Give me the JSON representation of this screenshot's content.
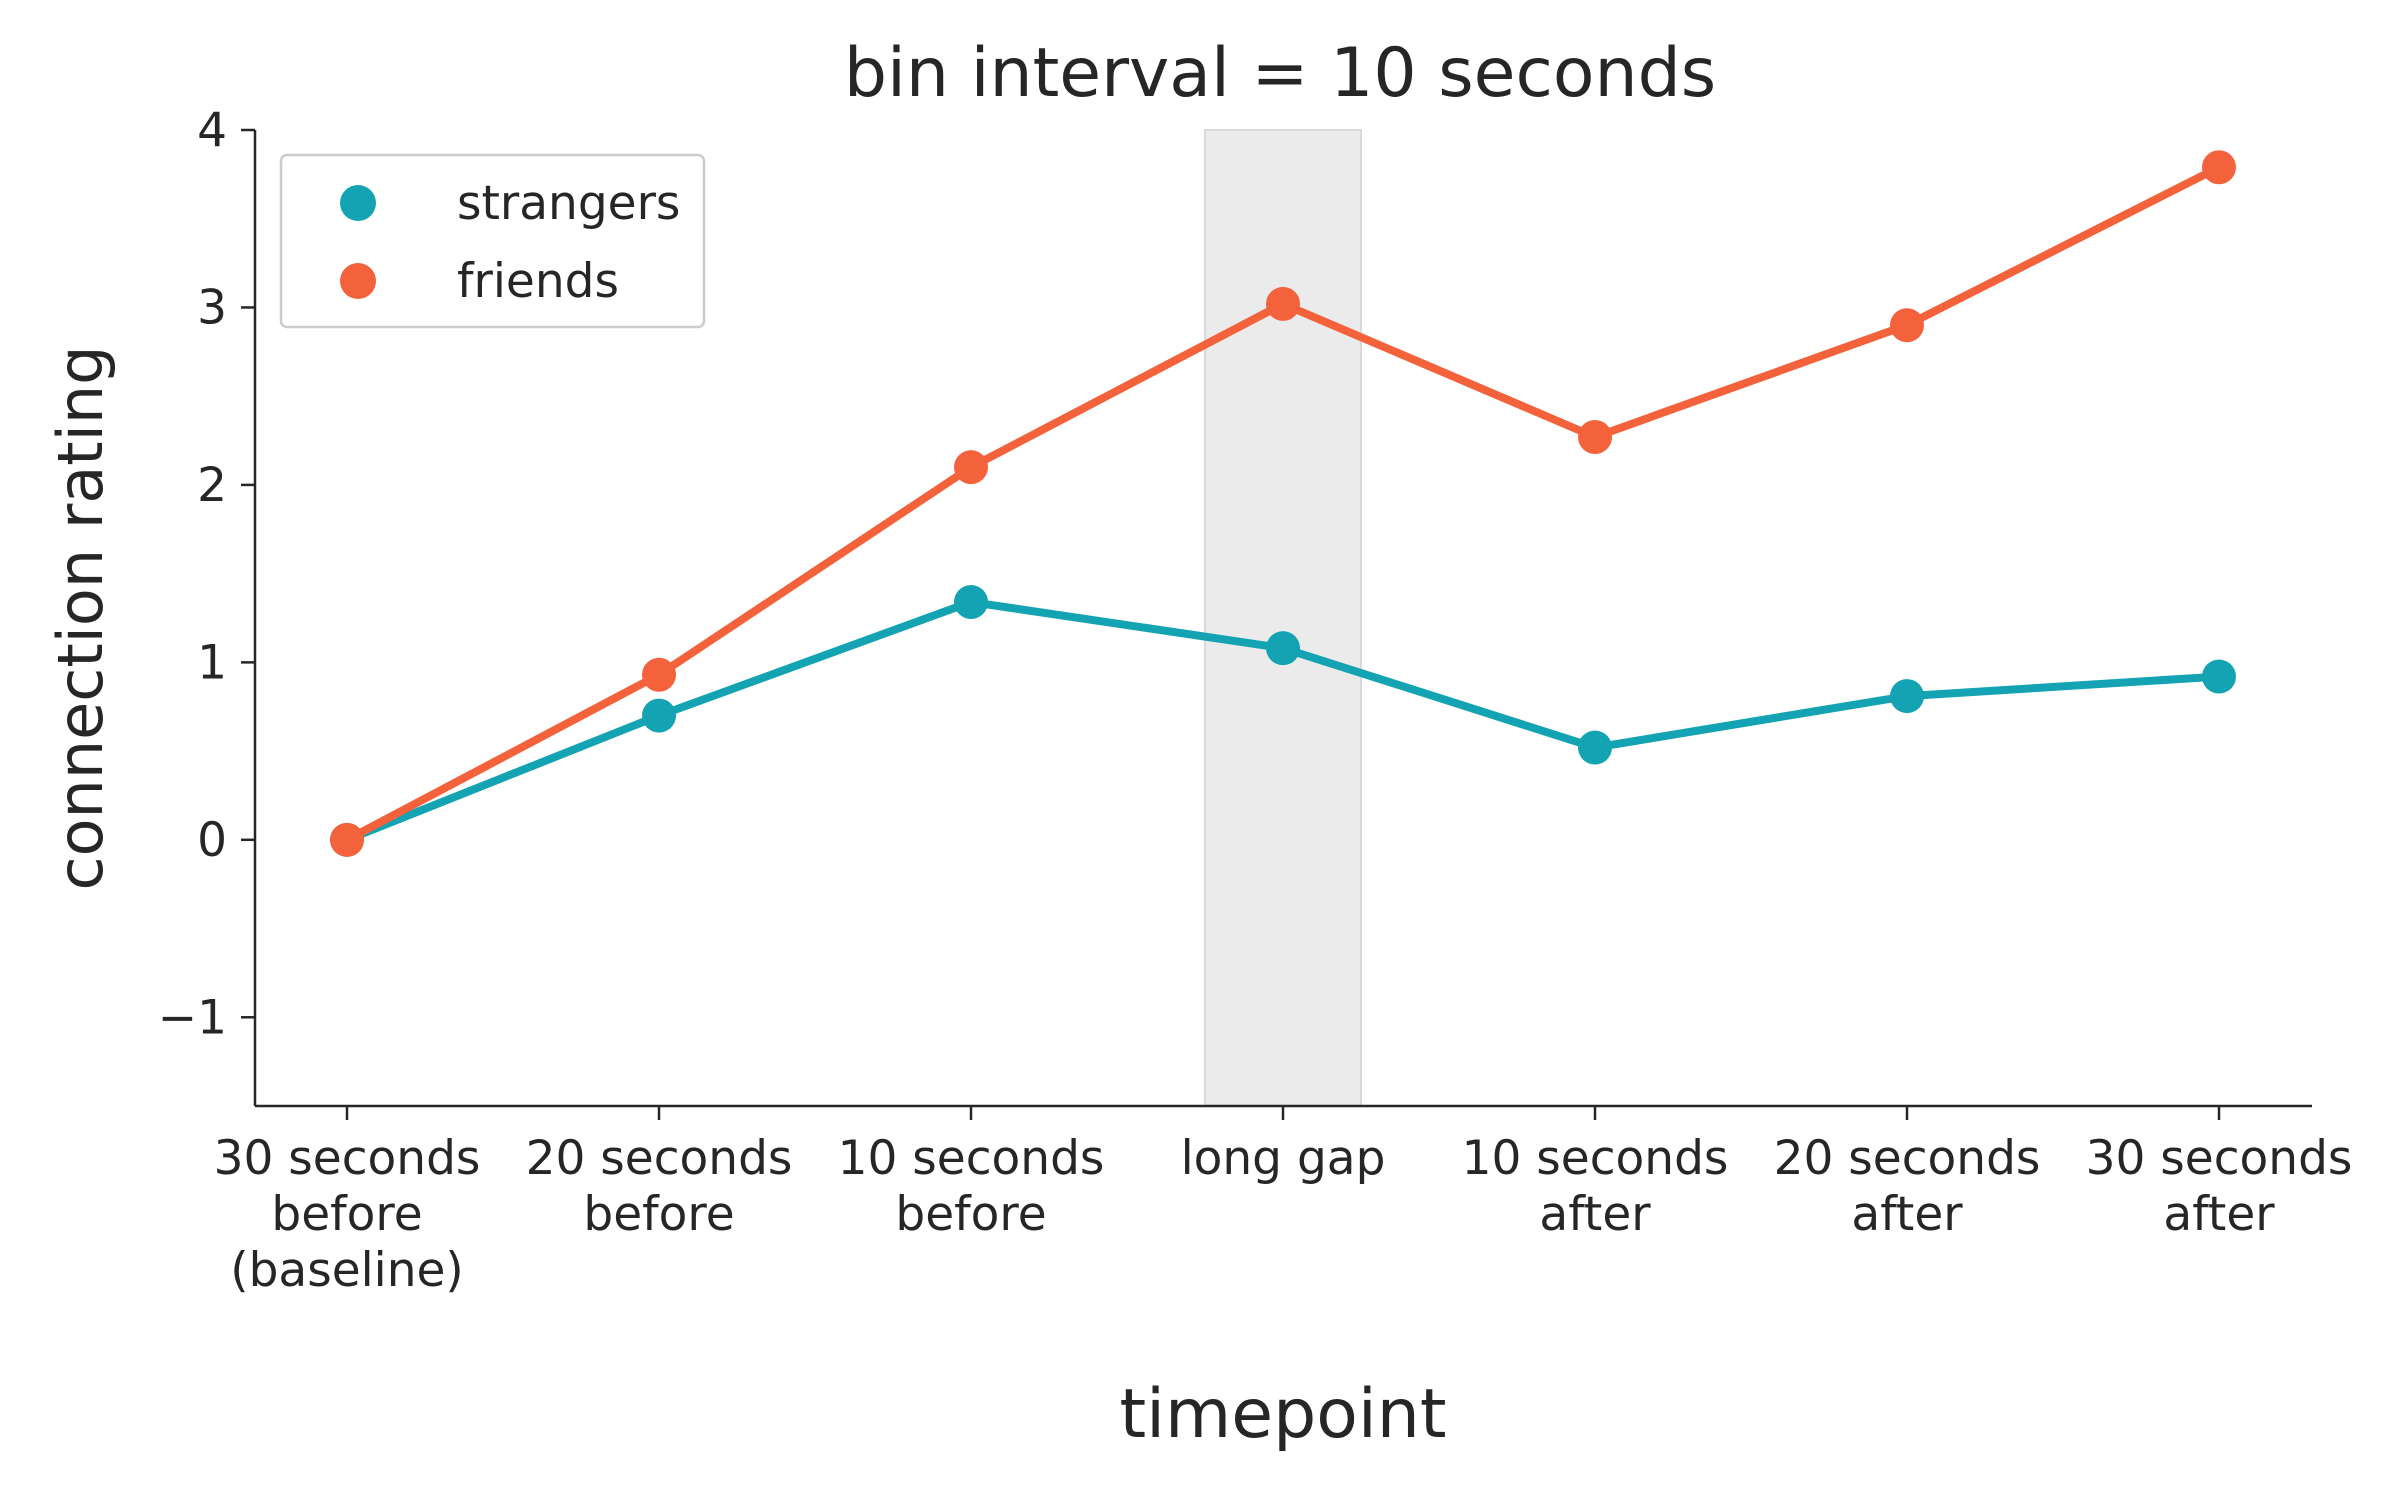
{
  "chart_data": {
    "type": "line",
    "title": "bin interval = 10 seconds",
    "xlabel": "timepoint",
    "ylabel": "connection rating",
    "categories": [
      [
        "30 seconds",
        "before",
        "(baseline)"
      ],
      [
        "20 seconds",
        "before"
      ],
      [
        "10 seconds",
        "before"
      ],
      [
        "long gap"
      ],
      [
        "10 seconds",
        "after"
      ],
      [
        "20 seconds",
        "after"
      ],
      [
        "30 seconds",
        "after"
      ]
    ],
    "yticks": [
      -1,
      0,
      1,
      2,
      3,
      4
    ],
    "ytick_labels": [
      "−1",
      "0",
      "1",
      "2",
      "3",
      "4"
    ],
    "ylim": [
      -1.5,
      4
    ],
    "series": [
      {
        "name": "strangers",
        "color": "#13a3b3",
        "values": [
          0,
          0.7,
          1.34,
          1.08,
          0.52,
          0.81,
          0.92
        ]
      },
      {
        "name": "friends",
        "color": "#f4623b",
        "values": [
          0,
          0.93,
          2.1,
          3.02,
          2.27,
          2.9,
          3.79
        ]
      }
    ],
    "highlight": {
      "category_index": 3,
      "color": "#ebebeb"
    },
    "legend": {
      "placement": "top-left"
    },
    "grid": false
  }
}
